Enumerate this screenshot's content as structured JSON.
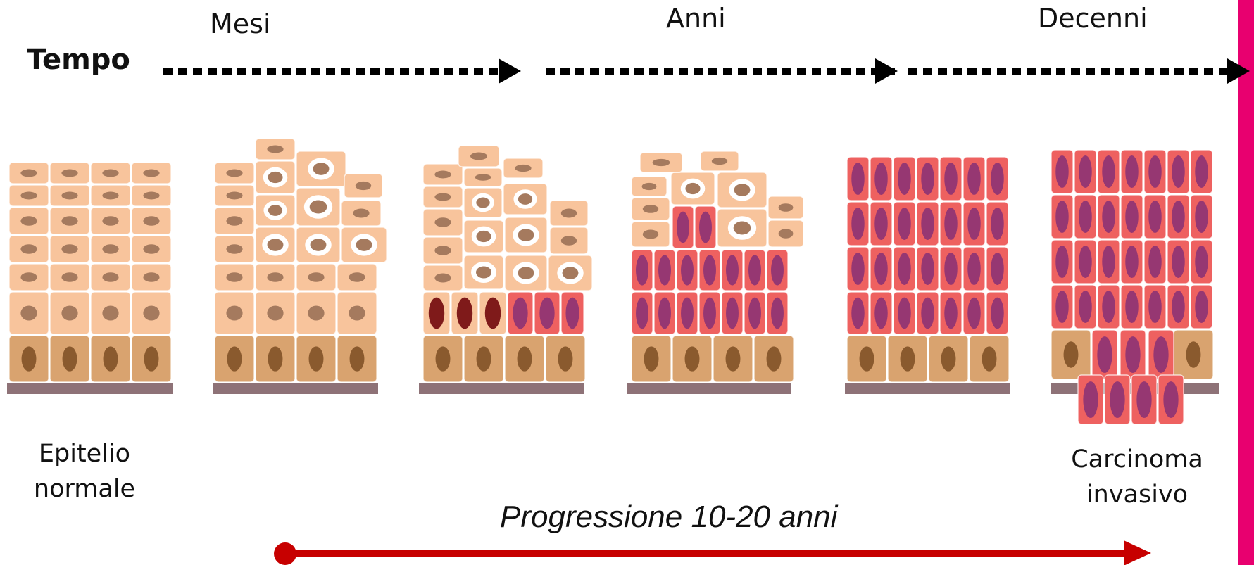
{
  "time": {
    "label": "Tempo",
    "stages": [
      "Mesi",
      "Anni",
      "Decenni"
    ]
  },
  "labels": {
    "normal": "Epitelio\nnormale",
    "invasive": "Carcinoma\ninvasivo",
    "progression": "Progressione 10-20 anni"
  },
  "colors": {
    "normal_cell": "#f8c49c",
    "basal_cell": "#d9a36f",
    "nucleus": "#a57a5e",
    "basal_nucleus": "#8a5a2e",
    "tumor_cell": "#ee6160",
    "tumor_nucleus": "#963772",
    "dark_nucleus": "#7f1a1a",
    "membrane": "#8e7277",
    "progression_arrow": "#c70000",
    "side_bar": "#e8006f"
  }
}
